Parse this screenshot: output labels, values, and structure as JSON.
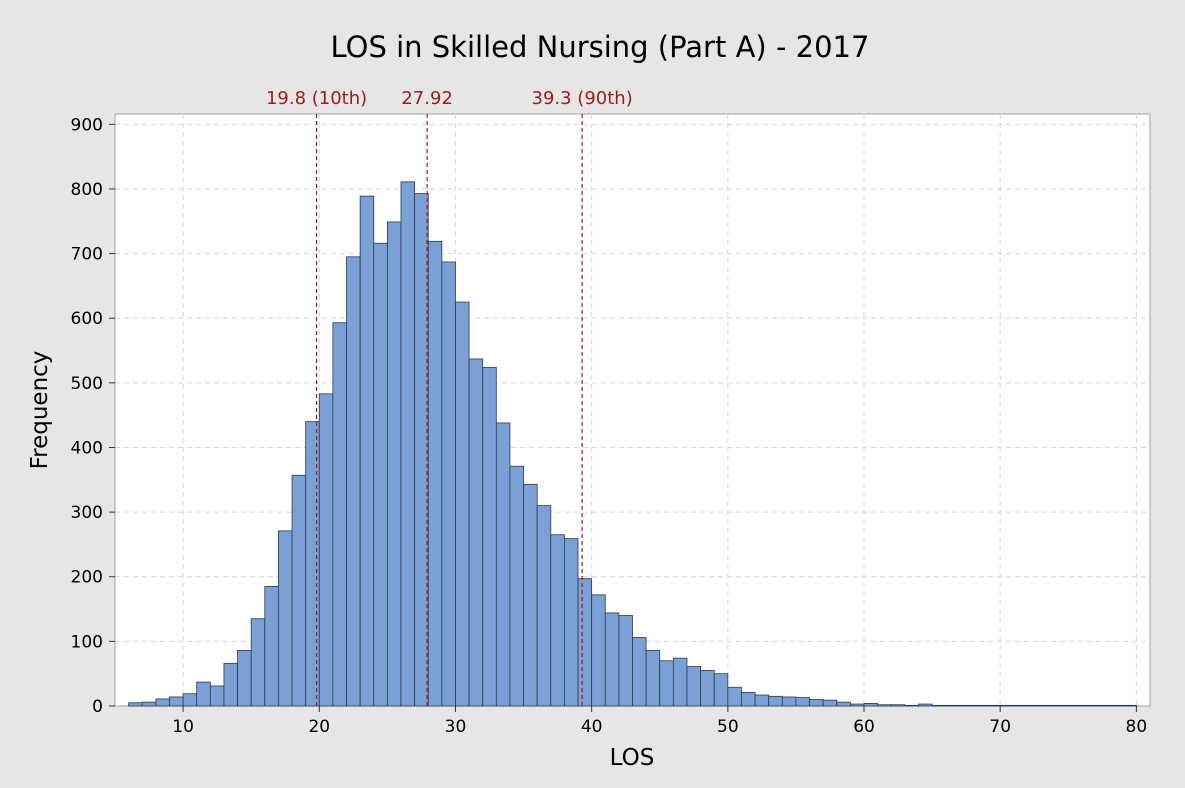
{
  "chart_data": {
    "type": "bar",
    "title": "LOS in Skilled Nursing (Part A) - 2017",
    "xlabel": "LOS",
    "ylabel": "Frequency",
    "xlim": [
      5,
      81
    ],
    "ylim": [
      0,
      916
    ],
    "x_ticks": [
      10,
      20,
      30,
      40,
      50,
      60,
      70,
      80
    ],
    "y_ticks": [
      0,
      100,
      200,
      300,
      400,
      500,
      600,
      700,
      800,
      900
    ],
    "grid": true,
    "bin_start": 6,
    "bin_width": 1,
    "values": [
      5,
      6,
      11,
      14,
      19,
      37,
      31,
      66,
      86,
      135,
      185,
      271,
      357,
      440,
      483,
      593,
      695,
      789,
      716,
      749,
      811,
      793,
      719,
      687,
      625,
      537,
      524,
      438,
      371,
      343,
      310,
      265,
      259,
      197,
      172,
      144,
      140,
      106,
      86,
      70,
      74,
      61,
      55,
      50,
      29,
      21,
      17,
      15,
      14,
      13,
      10,
      9,
      6,
      3,
      4,
      2,
      2,
      1,
      3,
      1,
      1,
      1,
      1,
      1,
      1,
      1,
      1,
      1,
      1,
      1,
      1,
      1,
      1,
      1
    ],
    "reference_lines": [
      {
        "x": 19.8,
        "label": "19.8 (10th)"
      },
      {
        "x": 27.92,
        "label": "27.92"
      },
      {
        "x": 39.3,
        "label": "39.3 (90th)"
      }
    ],
    "colors": {
      "bar_fill": "#7aa0d5",
      "bar_stroke": "#2b3a4d",
      "reference_line": "#9b1c1c",
      "grid": "#d6d6d6",
      "plot_bg": "#ffffff",
      "figure_bg": "#e6e6e6"
    }
  }
}
